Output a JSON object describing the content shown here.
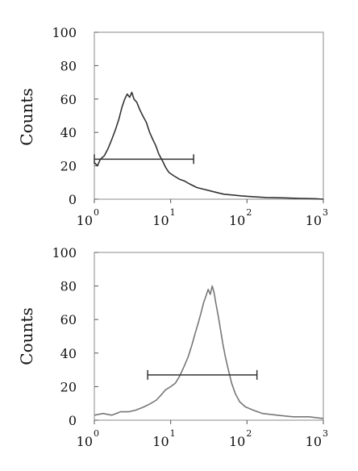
{
  "chart_data": [
    {
      "type": "line",
      "ylabel": "Counts",
      "xlabel": "",
      "xscale": "log",
      "xlim": [
        1,
        1000
      ],
      "ylim": [
        0,
        100
      ],
      "yticks": [
        "0",
        "20",
        "40",
        "60",
        "80",
        "100"
      ],
      "xticks": [
        {
          "base": "10",
          "exp": "0"
        },
        {
          "base": "10",
          "exp": "1"
        },
        {
          "base": "10",
          "exp": "2"
        },
        {
          "base": "10",
          "exp": "3"
        }
      ],
      "series": [
        {
          "color": "#333333",
          "points": [
            [
              1.0,
              22
            ],
            [
              1.1,
              20
            ],
            [
              1.2,
              24
            ],
            [
              1.35,
              26
            ],
            [
              1.5,
              30
            ],
            [
              1.7,
              36
            ],
            [
              1.9,
              42
            ],
            [
              2.1,
              48
            ],
            [
              2.3,
              55
            ],
            [
              2.5,
              60
            ],
            [
              2.7,
              63
            ],
            [
              2.9,
              61
            ],
            [
              3.1,
              64
            ],
            [
              3.3,
              60
            ],
            [
              3.6,
              58
            ],
            [
              3.9,
              54
            ],
            [
              4.3,
              50
            ],
            [
              4.8,
              46
            ],
            [
              5.3,
              40
            ],
            [
              5.8,
              36
            ],
            [
              6.4,
              32
            ],
            [
              7.0,
              27
            ],
            [
              7.8,
              23
            ],
            [
              8.6,
              19
            ],
            [
              9.5,
              16
            ],
            [
              11,
              14
            ],
            [
              13,
              12
            ],
            [
              15,
              11
            ],
            [
              18,
              9
            ],
            [
              22,
              7
            ],
            [
              27,
              6
            ],
            [
              33,
              5
            ],
            [
              40,
              4
            ],
            [
              50,
              3
            ],
            [
              65,
              2.5
            ],
            [
              85,
              2
            ],
            [
              120,
              1.5
            ],
            [
              180,
              1
            ],
            [
              300,
              0.8
            ],
            [
              500,
              0.5
            ],
            [
              800,
              0.3
            ],
            [
              1000,
              0
            ]
          ]
        }
      ],
      "gate": {
        "x1": 1.0,
        "x2": 20,
        "y": 24
      }
    },
    {
      "type": "line",
      "ylabel": "Counts",
      "xlabel": "",
      "xscale": "log",
      "xlim": [
        1,
        1000
      ],
      "ylim": [
        0,
        100
      ],
      "yticks": [
        "0",
        "20",
        "40",
        "60",
        "80",
        "100"
      ],
      "xticks": [
        {
          "base": "10",
          "exp": "0"
        },
        {
          "base": "10",
          "exp": "1"
        },
        {
          "base": "10",
          "exp": "2"
        },
        {
          "base": "10",
          "exp": "3"
        }
      ],
      "series": [
        {
          "color": "#777777",
          "points": [
            [
              1.0,
              3
            ],
            [
              1.3,
              4
            ],
            [
              1.7,
              3
            ],
            [
              2.2,
              5
            ],
            [
              2.8,
              5
            ],
            [
              3.5,
              6
            ],
            [
              4.5,
              8
            ],
            [
              5.5,
              10
            ],
            [
              6.5,
              12
            ],
            [
              7.5,
              15
            ],
            [
              8.5,
              18
            ],
            [
              10,
              20
            ],
            [
              11.5,
              22
            ],
            [
              13,
              26
            ],
            [
              15,
              32
            ],
            [
              17,
              38
            ],
            [
              19,
              45
            ],
            [
              21,
              52
            ],
            [
              23,
              58
            ],
            [
              25,
              64
            ],
            [
              27,
              70
            ],
            [
              29,
              74
            ],
            [
              31,
              78
            ],
            [
              33,
              75
            ],
            [
              35,
              80
            ],
            [
              37,
              76
            ],
            [
              39,
              70
            ],
            [
              42,
              62
            ],
            [
              45,
              54
            ],
            [
              48,
              46
            ],
            [
              52,
              38
            ],
            [
              57,
              30
            ],
            [
              63,
              22
            ],
            [
              70,
              16
            ],
            [
              80,
              11
            ],
            [
              95,
              8
            ],
            [
              120,
              6
            ],
            [
              160,
              4
            ],
            [
              250,
              3
            ],
            [
              400,
              2
            ],
            [
              650,
              2
            ],
            [
              1000,
              1
            ]
          ]
        }
      ],
      "gate": {
        "x1": 5,
        "x2": 135,
        "y": 27
      }
    }
  ]
}
